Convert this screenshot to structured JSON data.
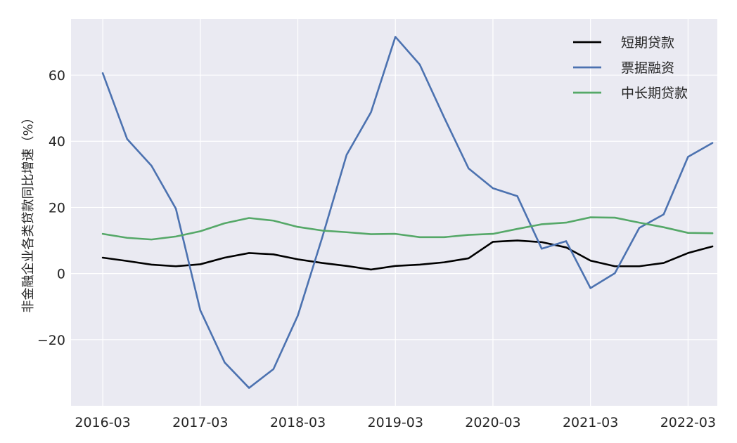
{
  "chart_data": {
    "type": "line",
    "ylabel": "非金融企业各类贷款同比增速（%）",
    "xlabel": "",
    "x_tick_labels": [
      "2016-03",
      "2017-03",
      "2018-03",
      "2019-03",
      "2020-03",
      "2021-03",
      "2022-03"
    ],
    "y_ticks": [
      -20,
      0,
      20,
      40,
      60
    ],
    "ylim": [
      -40,
      77
    ],
    "xlim_quarters": [
      -1.3,
      25.2
    ],
    "x": [
      "2016-03",
      "2016-06",
      "2016-09",
      "2016-12",
      "2017-03",
      "2017-06",
      "2017-09",
      "2017-12",
      "2018-03",
      "2018-06",
      "2018-09",
      "2018-12",
      "2019-03",
      "2019-06",
      "2019-09",
      "2019-12",
      "2020-03",
      "2020-06",
      "2020-09",
      "2020-12",
      "2021-03",
      "2021-06",
      "2021-09",
      "2021-12",
      "2022-03",
      "2022-06"
    ],
    "grid": true,
    "legend_position": "top-right",
    "series": [
      {
        "name": "短期贷款",
        "color": "#000000",
        "values": [
          4.8,
          3.8,
          2.7,
          2.2,
          2.8,
          4.8,
          6.2,
          5.8,
          4.3,
          3.2,
          2.3,
          1.2,
          2.3,
          2.7,
          3.4,
          4.6,
          9.6,
          10.0,
          9.5,
          7.9,
          3.9,
          2.2,
          2.2,
          3.2,
          6.2,
          8.2
        ]
      },
      {
        "name": "票据融资",
        "color": "#4c72b0",
        "values": [
          60.6,
          40.7,
          32.6,
          19.6,
          -11.1,
          -26.9,
          -34.6,
          -28.9,
          -12.7,
          10.9,
          35.9,
          48.8,
          71.6,
          63.2,
          47.2,
          31.8,
          25.8,
          23.4,
          7.5,
          9.8,
          -4.4,
          0.1,
          13.8,
          17.9,
          35.3,
          39.5
        ]
      },
      {
        "name": "中长期贷款",
        "color": "#55a868",
        "values": [
          12.0,
          10.8,
          10.3,
          11.2,
          12.8,
          15.2,
          16.8,
          16.0,
          14.1,
          13.0,
          12.5,
          11.9,
          12.0,
          11.0,
          11.0,
          11.7,
          12.0,
          13.5,
          14.9,
          15.4,
          17.0,
          16.9,
          15.4,
          14.0,
          12.3,
          12.2
        ]
      }
    ]
  }
}
